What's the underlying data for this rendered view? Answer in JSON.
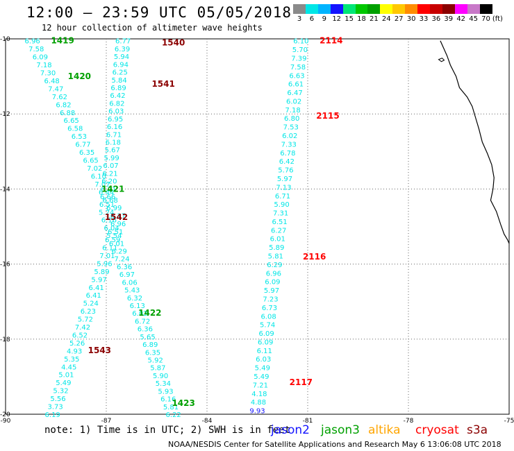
{
  "title": "12:00 – 23:59 UTC 05/05/2018",
  "subtitle": "12 hour collection of altimeter wave heights",
  "note": "note: 1) Time is in UTC; 2) SWH is in feet",
  "credit": "NOAA/NESDIS Center for Satellite Applications and Research   May  6 13:06:08 UTC 2018",
  "color_scale": {
    "unit": "(ft)",
    "bins": [
      {
        "label": "3",
        "color": "#8a8a8a"
      },
      {
        "label": "6",
        "color": "#00e6e6"
      },
      {
        "label": "9",
        "color": "#00b4ff"
      },
      {
        "label": "12",
        "color": "#1414ff"
      },
      {
        "label": "15",
        "color": "#00e676"
      },
      {
        "label": "18",
        "color": "#00c800"
      },
      {
        "label": "21",
        "color": "#00a000"
      },
      {
        "label": "24",
        "color": "#ffff00"
      },
      {
        "label": "27",
        "color": "#ffc800"
      },
      {
        "label": "30",
        "color": "#ff8c00"
      },
      {
        "label": "33",
        "color": "#ff0000"
      },
      {
        "label": "36",
        "color": "#c80000"
      },
      {
        "label": "39",
        "color": "#8b0000"
      },
      {
        "label": "42",
        "color": "#ff00ff"
      },
      {
        "label": "45",
        "color": "#c878c8"
      },
      {
        "label": "70",
        "color": "#000000"
      }
    ]
  },
  "satellites": [
    {
      "name": "jason2",
      "color": "#1414ff"
    },
    {
      "name": "jason3",
      "color": "#00a000"
    },
    {
      "name": "altika",
      "color": "#ffa500"
    },
    {
      "name": "cryosat",
      "color": "#ff0000"
    },
    {
      "name": "s3a",
      "color": "#8b0000"
    }
  ],
  "map": {
    "lon_ticks": [
      "-90",
      "-87",
      "-84",
      "-81",
      "-78",
      "-75"
    ],
    "lat_ticks": [
      "-10",
      "-12",
      "-14",
      "-16",
      "-18",
      "-20"
    ],
    "lon_range": [
      -90,
      -75
    ],
    "lat_range": [
      -20,
      -10
    ],
    "land_color": "#000000"
  },
  "tracks": [
    {
      "satellite": "jason3",
      "color": "#00e6e6",
      "values": [
        "6.96",
        "7.58",
        "6.09",
        "7.18",
        "7.30",
        "6.48",
        "7.47",
        "7.62",
        "6.82",
        "6.88",
        "6.65",
        "6.58",
        "6.53",
        "6.77",
        "6.35",
        "6.65",
        "7.02",
        "6.10",
        "7.07",
        "6.44",
        "6.68",
        "6.99",
        "6.17",
        "6.96",
        "6.51",
        "6.59",
        "6.11",
        "7.01",
        "5.96",
        "5.89",
        "5.97",
        "6.41",
        "6.41",
        "5.24",
        "6.23",
        "5.72",
        "7.42",
        "6.52",
        "5.26",
        "4.93",
        "5.35",
        "4.45",
        "5.01",
        "5.49",
        "5.32",
        "5.56",
        "3.73",
        "6.19"
      ]
    },
    {
      "satellite": "s3a",
      "color": "#00e6e6",
      "values": [
        "6.77",
        "6.39",
        "5.94",
        "6.94",
        "6.25",
        "5.84",
        "6.89",
        "6.42",
        "6.82",
        "6.03",
        "6.95",
        "6.16",
        "6.71",
        "6.18",
        "5.67",
        "5.99",
        "6.07",
        "6.21",
        "6.20",
        "6.21",
        "6.66",
        "6.51",
        "5.24",
        "6.16",
        "6.04",
        "5.54",
        "6.01",
        "6.29",
        "7.24",
        "6.36",
        "6.97",
        "6.06",
        "5.43",
        "6.32",
        "6.13",
        "6.02",
        "6.72",
        "6.36",
        "5.65",
        "6.89",
        "6.35",
        "5.92",
        "5.87",
        "5.90",
        "5.34",
        "5.93",
        "6.16",
        "5.81",
        "6.22"
      ]
    },
    {
      "satellite": "cryosat",
      "color": "#00e6e6",
      "values": [
        "6.10",
        "5.70",
        "7.39",
        "7.58",
        "6.63",
        "6.61",
        "6.47",
        "6.02",
        "7.18",
        "6.80",
        "7.53",
        "6.02",
        "7.33",
        "6.78",
        "6.42",
        "5.76",
        "5.97",
        "7.13",
        "6.71",
        "5.90",
        "7.31",
        "6.51",
        "6.27",
        "6.01",
        "5.89",
        "5.81",
        "6.29",
        "6.96",
        "6.09",
        "5.97",
        "7.23",
        "6.73",
        "6.08",
        "5.74",
        "6.09",
        "6.09",
        "6.11",
        "6.03",
        "5.49",
        "5.49",
        "7.21",
        "4.18",
        "4.88",
        "9.93"
      ]
    }
  ],
  "pass_labels": [
    {
      "text": "1419",
      "color": "#00a000"
    },
    {
      "text": "1420",
      "color": "#00a000"
    },
    {
      "text": "1421",
      "color": "#00a000"
    },
    {
      "text": "1422",
      "color": "#00a000"
    },
    {
      "text": "1423",
      "color": "#00a000"
    },
    {
      "text": "1540",
      "color": "#8b0000"
    },
    {
      "text": "1541",
      "color": "#8b0000"
    },
    {
      "text": "1542",
      "color": "#8b0000"
    },
    {
      "text": "1543",
      "color": "#8b0000"
    },
    {
      "text": "2114",
      "color": "#ff0000"
    },
    {
      "text": "2115",
      "color": "#ff0000"
    },
    {
      "text": "2116",
      "color": "#ff0000"
    },
    {
      "text": "2117",
      "color": "#ff0000"
    }
  ]
}
